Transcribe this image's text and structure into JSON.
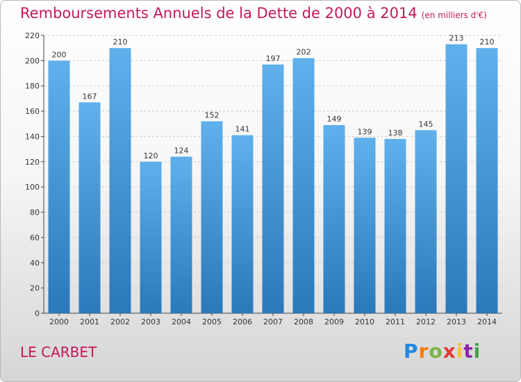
{
  "header": {
    "title": "Remboursements Annuels de la Dette de 2000 à 2014",
    "subtitle": "(en milliers d'€)"
  },
  "footer": {
    "city": "LE CARBET",
    "logo": "Proxiti"
  },
  "colors": {
    "title": "#c2185b",
    "bar_light": "#5fb0ec",
    "bar_dark": "#2a79bb",
    "grid": "#cccccc"
  },
  "chart_data": {
    "type": "bar",
    "title": "Remboursements Annuels de la Dette de 2000 à 2014",
    "subtitle": "(en milliers d'€)",
    "xlabel": "",
    "ylabel": "",
    "categories": [
      "2000",
      "2001",
      "2002",
      "2003",
      "2004",
      "2005",
      "2006",
      "2007",
      "2008",
      "2009",
      "2010",
      "2011",
      "2012",
      "2013",
      "2014"
    ],
    "values": [
      200,
      167,
      210,
      120,
      124,
      152,
      141,
      197,
      202,
      149,
      139,
      138,
      145,
      213,
      210
    ],
    "ylim": [
      0,
      220
    ],
    "yticks": [
      0,
      20,
      40,
      60,
      80,
      100,
      120,
      140,
      160,
      180,
      200,
      220
    ],
    "grid": true,
    "data_labels": true
  }
}
